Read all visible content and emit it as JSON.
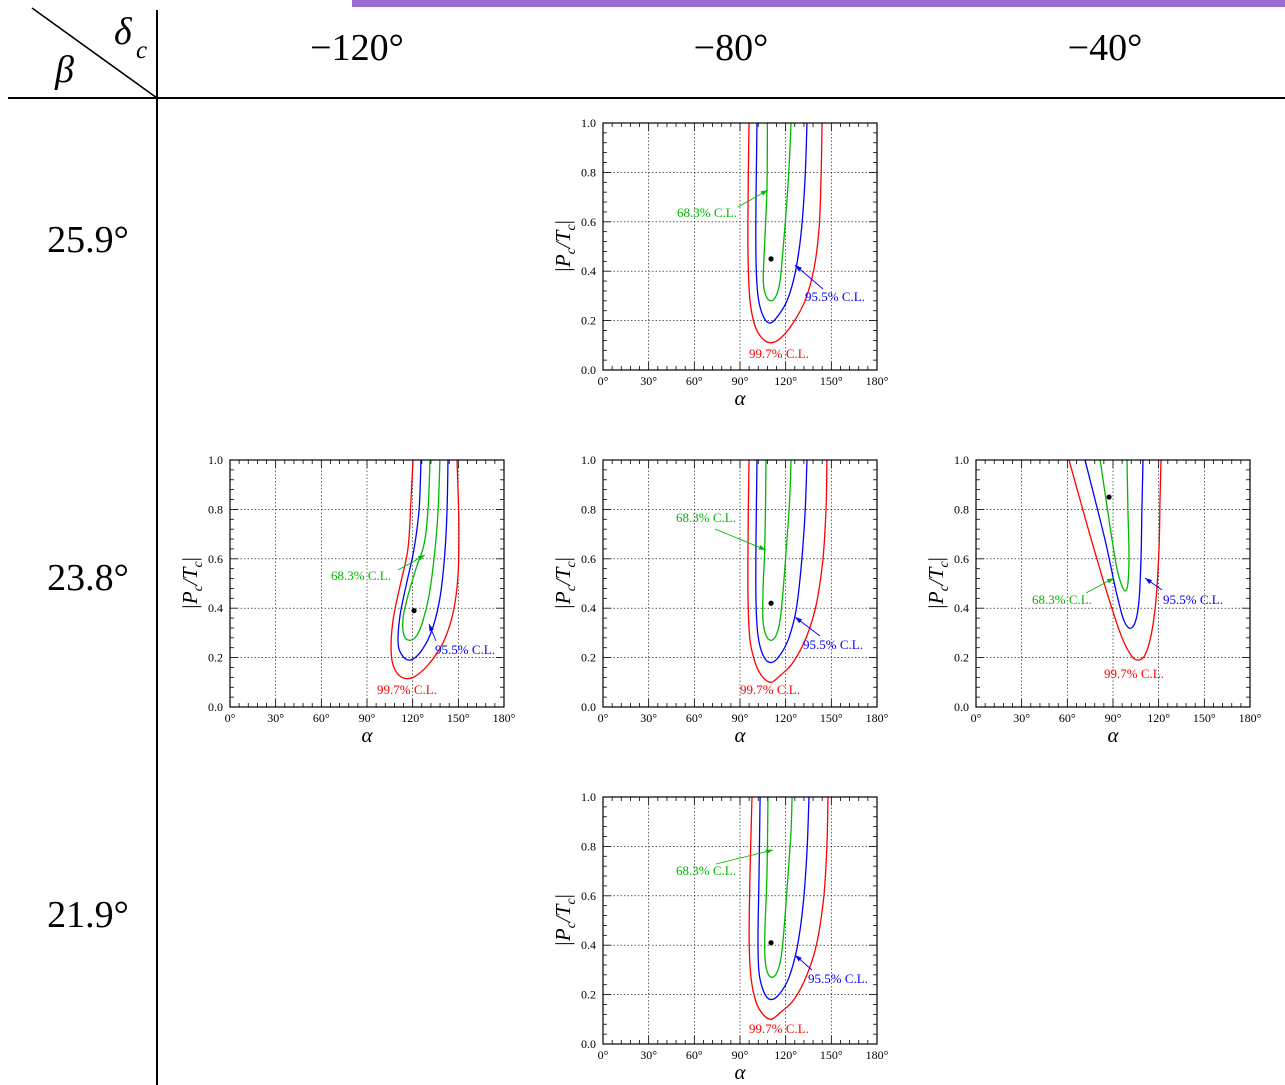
{
  "header": {
    "row_var": "β",
    "col_var": "δ",
    "col_var_sub": "c"
  },
  "columns": [
    "−120°",
    "−80°",
    "−40°"
  ],
  "rows": [
    "25.9°",
    "23.8°",
    "21.9°"
  ],
  "colors": {
    "accent_bar": "#9c6bd0",
    "cl68": "#00b800",
    "cl95": "#0000ff",
    "cl99": "#ff0000",
    "best_fit": "#000000"
  },
  "chart_data": [
    {
      "type": "line",
      "beta": "25.9°",
      "delta_c": "−80°",
      "xlabel": "α",
      "ylabel_parts": [
        {
          "text": "|P"
        },
        {
          "text": "c",
          "sub": true
        },
        {
          "text": "/T"
        },
        {
          "text": "c",
          "sub": true
        },
        {
          "text": "|"
        }
      ],
      "xlim": [
        0,
        180
      ],
      "ylim": [
        0,
        1.0
      ],
      "x_tick_labels": [
        "0°",
        "30°",
        "60°",
        "90°",
        "120°",
        "150°",
        "180°"
      ],
      "y_tick_labels": [
        "0.0",
        "0.2",
        "0.4",
        "0.6",
        "0.8",
        "1.0"
      ],
      "grid": true,
      "best_fit": {
        "alpha": 110.4,
        "P": 0.45
      },
      "contours": [
        {
          "label": "68.3% C.L.",
          "color": "#00b800",
          "alpha": [
            108.0,
            107.7,
            106.0,
            105.3,
            107.1,
            110.4,
            113.7,
            116.3,
            118.3,
            120.9,
            122.8,
            123.5
          ],
          "P": [
            1.0,
            0.73,
            0.49,
            0.36,
            0.3,
            0.28,
            0.3,
            0.36,
            0.49,
            0.69,
            0.89,
            1.0
          ]
        },
        {
          "label": "95.5% C.L.",
          "color": "#0000ff",
          "alpha": [
            101.2,
            100.5,
            100.5,
            101.8,
            105.1,
            109.7,
            115.0,
            120.9,
            126.1,
            130.1,
            132.7,
            134.0
          ],
          "P": [
            1.0,
            0.69,
            0.45,
            0.3,
            0.22,
            0.19,
            0.22,
            0.28,
            0.39,
            0.55,
            0.77,
            1.0
          ]
        },
        {
          "label": "99.7% C.L.",
          "color": "#ff0000",
          "alpha": [
            95.9,
            95.3,
            95.3,
            96.6,
            99.8,
            104.4,
            110.4,
            116.9,
            124.8,
            132.7,
            138.6,
            141.9,
            143.2,
            143.9
          ],
          "P": [
            1.0,
            0.69,
            0.45,
            0.28,
            0.18,
            0.13,
            0.11,
            0.13,
            0.19,
            0.28,
            0.41,
            0.57,
            0.77,
            1.0
          ]
        }
      ]
    },
    {
      "type": "line",
      "beta": "23.8°",
      "delta_c": "−120°",
      "xlabel": "α",
      "ylabel_parts": [
        {
          "text": "|P"
        },
        {
          "text": "c",
          "sub": true
        },
        {
          "text": "/T"
        },
        {
          "text": "c",
          "sub": true
        },
        {
          "text": "|"
        }
      ],
      "xlim": [
        0,
        180
      ],
      "ylim": [
        0,
        1.0
      ],
      "x_tick_labels": [
        "0°",
        "30°",
        "60°",
        "90°",
        "120°",
        "150°",
        "180°"
      ],
      "y_tick_labels": [
        "0.0",
        "0.2",
        "0.4",
        "0.6",
        "0.8",
        "1.0"
      ],
      "grid": true,
      "best_fit": {
        "alpha": 120.9,
        "P": 0.39
      },
      "contours": [
        {
          "label": "68.3% C.L.",
          "color": "#00b800",
          "alpha": [
            131.4,
            130.1,
            127.5,
            122.2,
            116.9,
            113.7,
            114.3,
            118.2,
            122.8,
            126.8,
            130.7,
            134.0,
            136.6,
            137.9
          ],
          "P": [
            1.0,
            0.8,
            0.66,
            0.56,
            0.45,
            0.36,
            0.29,
            0.27,
            0.29,
            0.35,
            0.45,
            0.6,
            0.78,
            1.0
          ]
        },
        {
          "label": "95.5% C.L.",
          "color": "#0000ff",
          "alpha": [
            125.5,
            124.2,
            120.9,
            115.6,
            111.7,
            110.4,
            113.0,
            118.2,
            124.8,
            132.0,
            137.3,
            140.6,
            142.5,
            143.2
          ],
          "P": [
            1.0,
            0.8,
            0.64,
            0.49,
            0.37,
            0.26,
            0.21,
            0.19,
            0.22,
            0.3,
            0.42,
            0.58,
            0.78,
            1.0
          ]
        },
        {
          "label": "99.7% C.L.",
          "color": "#ff0000",
          "alpha": [
            120.2,
            118.9,
            116.9,
            111.7,
            107.1,
            105.8,
            107.7,
            113.0,
            120.2,
            130.1,
            139.9,
            146.5,
            149.8,
            150.4,
            149.8,
            149.1
          ],
          "P": [
            1.0,
            0.84,
            0.64,
            0.49,
            0.35,
            0.23,
            0.16,
            0.12,
            0.12,
            0.17,
            0.26,
            0.38,
            0.53,
            0.72,
            0.88,
            1.0
          ]
        }
      ]
    },
    {
      "type": "line",
      "beta": "23.8°",
      "delta_c": "−80°",
      "xlabel": "α",
      "ylabel_parts": [
        {
          "text": "|P"
        },
        {
          "text": "c",
          "sub": true
        },
        {
          "text": "/T"
        },
        {
          "text": "c",
          "sub": true
        },
        {
          "text": "|"
        }
      ],
      "xlim": [
        0,
        180
      ],
      "ylim": [
        0,
        1.0
      ],
      "x_tick_labels": [
        "0°",
        "30°",
        "60°",
        "90°",
        "120°",
        "150°",
        "180°"
      ],
      "y_tick_labels": [
        "0.0",
        "0.2",
        "0.4",
        "0.6",
        "0.8",
        "1.0"
      ],
      "grid": true,
      "best_fit": {
        "alpha": 110.4,
        "P": 0.42
      },
      "contours": [
        {
          "label": "68.3% C.L.",
          "color": "#00b800",
          "alpha": [
            107.1,
            106.4,
            105.1,
            105.1,
            107.1,
            110.4,
            113.7,
            116.3,
            118.3,
            120.9,
            122.8,
            123.5
          ],
          "P": [
            1.0,
            0.68,
            0.47,
            0.35,
            0.29,
            0.27,
            0.29,
            0.35,
            0.47,
            0.68,
            0.86,
            1.0
          ]
        },
        {
          "label": "95.5% C.L.",
          "color": "#0000ff",
          "alpha": [
            101.2,
            100.5,
            100.5,
            101.8,
            105.1,
            109.7,
            115.0,
            121.5,
            126.8,
            130.1,
            132.7,
            134.0
          ],
          "P": [
            1.0,
            0.68,
            0.43,
            0.29,
            0.21,
            0.18,
            0.2,
            0.27,
            0.39,
            0.56,
            0.78,
            1.0
          ]
        },
        {
          "label": "99.7% C.L.",
          "color": "#ff0000",
          "alpha": [
            95.9,
            95.3,
            95.3,
            96.6,
            100.5,
            105.1,
            110.4,
            116.9,
            124.8,
            133.4,
            139.9,
            144.5,
            146.5,
            147.1
          ],
          "P": [
            1.0,
            0.69,
            0.43,
            0.27,
            0.17,
            0.12,
            0.1,
            0.13,
            0.18,
            0.28,
            0.41,
            0.6,
            0.8,
            1.0
          ]
        }
      ]
    },
    {
      "type": "line",
      "beta": "23.8°",
      "delta_c": "−40°",
      "xlabel": "α",
      "ylabel_parts": [
        {
          "text": "|P"
        },
        {
          "text": "c",
          "sub": true
        },
        {
          "text": "/T"
        },
        {
          "text": "c",
          "sub": true
        },
        {
          "text": "|"
        }
      ],
      "xlim": [
        0,
        180
      ],
      "ylim": [
        0,
        1.0
      ],
      "x_tick_labels": [
        "0°",
        "30°",
        "60°",
        "90°",
        "120°",
        "150°",
        "180°"
      ],
      "y_tick_labels": [
        "0.0",
        "0.2",
        "0.4",
        "0.6",
        "0.8",
        "1.0"
      ],
      "grid": true,
      "best_fit": {
        "alpha": 87.4,
        "P": 0.85
      },
      "contours": [
        {
          "label": "68.3% C.L.",
          "color": "#00b800",
          "alpha": [
            81.5,
            85.4,
            89.3,
            92.6,
            95.3,
            97.9,
            99.8,
            100.5,
            99.8,
            99.2
          ],
          "P": [
            1.0,
            0.84,
            0.68,
            0.56,
            0.5,
            0.47,
            0.5,
            0.62,
            0.8,
            1.0
          ]
        },
        {
          "label": "95.5% C.L.",
          "color": "#0000ff",
          "alpha": [
            71.6,
            78.2,
            85.4,
            92.0,
            96.6,
            100.5,
            104.4,
            107.1,
            108.4,
            109.0,
            109.7
          ],
          "P": [
            1.0,
            0.84,
            0.66,
            0.47,
            0.36,
            0.32,
            0.34,
            0.43,
            0.6,
            0.8,
            1.0
          ]
        },
        {
          "label": "99.7% C.L.",
          "color": "#ff0000",
          "alpha": [
            61.1,
            68.3,
            77.5,
            86.7,
            95.3,
            101.8,
            106.4,
            111.0,
            115.0,
            118.2,
            120.2,
            120.9,
            121.5
          ],
          "P": [
            1.0,
            0.84,
            0.64,
            0.45,
            0.29,
            0.21,
            0.19,
            0.21,
            0.29,
            0.43,
            0.64,
            0.84,
            1.0
          ]
        }
      ]
    },
    {
      "type": "line",
      "beta": "21.9°",
      "delta_c": "−80°",
      "xlabel": "α",
      "ylabel_parts": [
        {
          "text": "|P"
        },
        {
          "text": "c",
          "sub": true
        },
        {
          "text": "/T"
        },
        {
          "text": "c",
          "sub": true
        },
        {
          "text": "|"
        }
      ],
      "xlim": [
        0,
        180
      ],
      "ylim": [
        0,
        1.0
      ],
      "x_tick_labels": [
        "0°",
        "30°",
        "60°",
        "90°",
        "120°",
        "150°",
        "180°"
      ],
      "y_tick_labels": [
        "0.0",
        "0.2",
        "0.4",
        "0.6",
        "0.8",
        "1.0"
      ],
      "grid": true,
      "best_fit": {
        "alpha": 110.4,
        "P": 0.41
      },
      "contours": [
        {
          "label": "68.3% C.L.",
          "color": "#00b800",
          "alpha": [
            108.4,
            107.7,
            106.4,
            106.4,
            108.0,
            111.0,
            114.3,
            117.0,
            119.0,
            121.5,
            123.5,
            124.2
          ],
          "P": [
            1.0,
            0.68,
            0.47,
            0.35,
            0.29,
            0.27,
            0.29,
            0.35,
            0.47,
            0.68,
            0.86,
            1.0
          ]
        },
        {
          "label": "95.5% C.L.",
          "color": "#0000ff",
          "alpha": [
            103.2,
            102.5,
            101.8,
            102.5,
            105.7,
            110.0,
            115.6,
            122.2,
            127.5,
            131.4,
            134.0,
            135.3
          ],
          "P": [
            1.0,
            0.68,
            0.43,
            0.29,
            0.21,
            0.18,
            0.2,
            0.27,
            0.39,
            0.56,
            0.78,
            1.0
          ]
        },
        {
          "label": "99.7% C.L.",
          "color": "#ff0000",
          "alpha": [
            97.9,
            96.6,
            96.0,
            97.2,
            100.5,
            105.1,
            110.4,
            117.0,
            125.5,
            134.0,
            140.5,
            145.1,
            147.1,
            147.8
          ],
          "P": [
            1.0,
            0.69,
            0.43,
            0.27,
            0.17,
            0.12,
            0.1,
            0.13,
            0.18,
            0.28,
            0.41,
            0.6,
            0.8,
            1.0
          ]
        }
      ]
    }
  ]
}
